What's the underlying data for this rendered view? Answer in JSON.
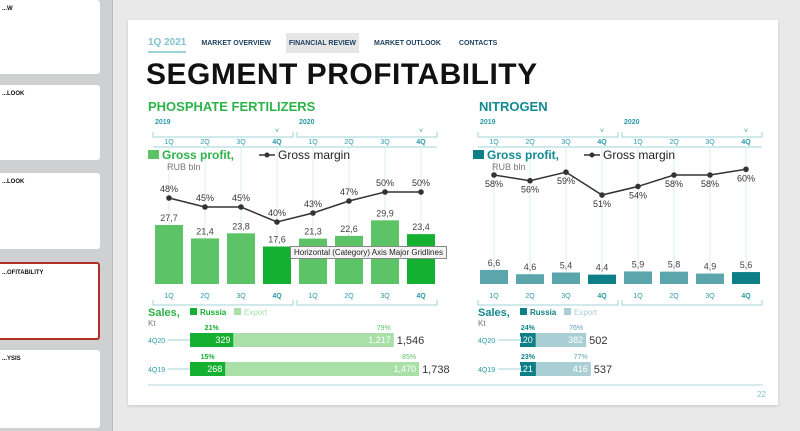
{
  "sidebar": {
    "thumbnails": [
      {
        "title": "...W"
      },
      {
        "title": "...LOOK"
      },
      {
        "title": "...LOOK"
      },
      {
        "title": "...OFITABILITY",
        "selected": true
      },
      {
        "title": "...YSIS"
      }
    ]
  },
  "nav": {
    "period": "1Q 2021",
    "items": [
      "MARKET OVERVIEW",
      "FINANCIAL REVIEW",
      "MARKET OUTLOOK",
      "CONTACTS"
    ],
    "active": "FINANCIAL REVIEW"
  },
  "title": "SEGMENT PROFITABILITY",
  "tooltip": "Horizontal (Category) Axis Major Gridlines",
  "page_number": "22",
  "colors": {
    "phosphate": "#5cc466",
    "phosphate_dark": "#14b030",
    "phosphate_light": "#a8e0a8",
    "nitrogen": "#5ba6ad",
    "nitrogen_dark": "#0e7f86",
    "nitrogen_light": "#a9cfd4",
    "nav": "#1b3f5e",
    "axis": "#2a9aa8"
  },
  "chart_data": [
    {
      "type": "bar",
      "title": "PHOSPHATE FERTILIZERS",
      "years": [
        "2019",
        "2020"
      ],
      "categories": [
        "1Q",
        "2Q",
        "3Q",
        "4Q",
        "1Q",
        "2Q",
        "3Q",
        "4Q"
      ],
      "legend": {
        "bar": "Gross profit,",
        "unit": "RUB bln",
        "line": "Gross margin"
      },
      "series": [
        {
          "name": "Gross profit",
          "values": [
            27.7,
            21.4,
            23.8,
            17.6,
            21.3,
            22.6,
            29.9,
            23.4
          ],
          "labels": [
            "27,7",
            "21,4",
            "23,8",
            "17,6",
            "21,3",
            "22,6",
            "29,9",
            "23,4"
          ]
        },
        {
          "name": "Gross margin",
          "type": "line",
          "values": [
            48,
            45,
            45,
            40,
            43,
            47,
            50,
            50
          ],
          "labels": [
            "48%",
            "45%",
            "45%",
            "40%",
            "43%",
            "47%",
            "50%",
            "50%"
          ]
        }
      ],
      "sales": {
        "title": "Sales,",
        "unit": "Kt",
        "legend": [
          "Russia",
          "Export"
        ],
        "rows": [
          {
            "period": "4Q20",
            "russia": 329,
            "export": 1217,
            "russia_label": "329",
            "export_label": "1,217",
            "russia_pct": "21%",
            "export_pct": "79%",
            "total": "1,546"
          },
          {
            "period": "4Q19",
            "russia": 268,
            "export": 1470,
            "russia_label": "268",
            "export_label": "1,470",
            "russia_pct": "15%",
            "export_pct": "85%",
            "total": "1,738"
          }
        ]
      }
    },
    {
      "type": "bar",
      "title": "NITROGEN",
      "years": [
        "2019",
        "2020"
      ],
      "categories": [
        "1Q",
        "2Q",
        "3Q",
        "4Q",
        "1Q",
        "2Q",
        "3Q",
        "4Q"
      ],
      "legend": {
        "bar": "Gross profit,",
        "unit": "RUB bln",
        "line": "Gross margin"
      },
      "series": [
        {
          "name": "Gross profit",
          "values": [
            6.6,
            4.6,
            5.4,
            4.4,
            5.9,
            5.8,
            4.9,
            5.6
          ],
          "labels": [
            "6,6",
            "4,6",
            "5,4",
            "4,4",
            "5,9",
            "5,8",
            "4,9",
            "5,6"
          ]
        },
        {
          "name": "Gross margin",
          "type": "line",
          "values": [
            58,
            56,
            59,
            51,
            54,
            58,
            58,
            60
          ],
          "labels": [
            "58%",
            "56%",
            "59%",
            "51%",
            "54%",
            "58%",
            "58%",
            "60%"
          ]
        }
      ],
      "sales": {
        "title": "Sales,",
        "unit": "Kt",
        "legend": [
          "Russia",
          "Export"
        ],
        "rows": [
          {
            "period": "4Q20",
            "russia": 120,
            "export": 382,
            "russia_label": "120",
            "export_label": "382",
            "russia_pct": "24%",
            "export_pct": "76%",
            "total": "502"
          },
          {
            "period": "4Q19",
            "russia": 121,
            "export": 416,
            "russia_label": "121",
            "export_label": "416",
            "russia_pct": "23%",
            "export_pct": "77%",
            "total": "537"
          }
        ]
      }
    }
  ]
}
